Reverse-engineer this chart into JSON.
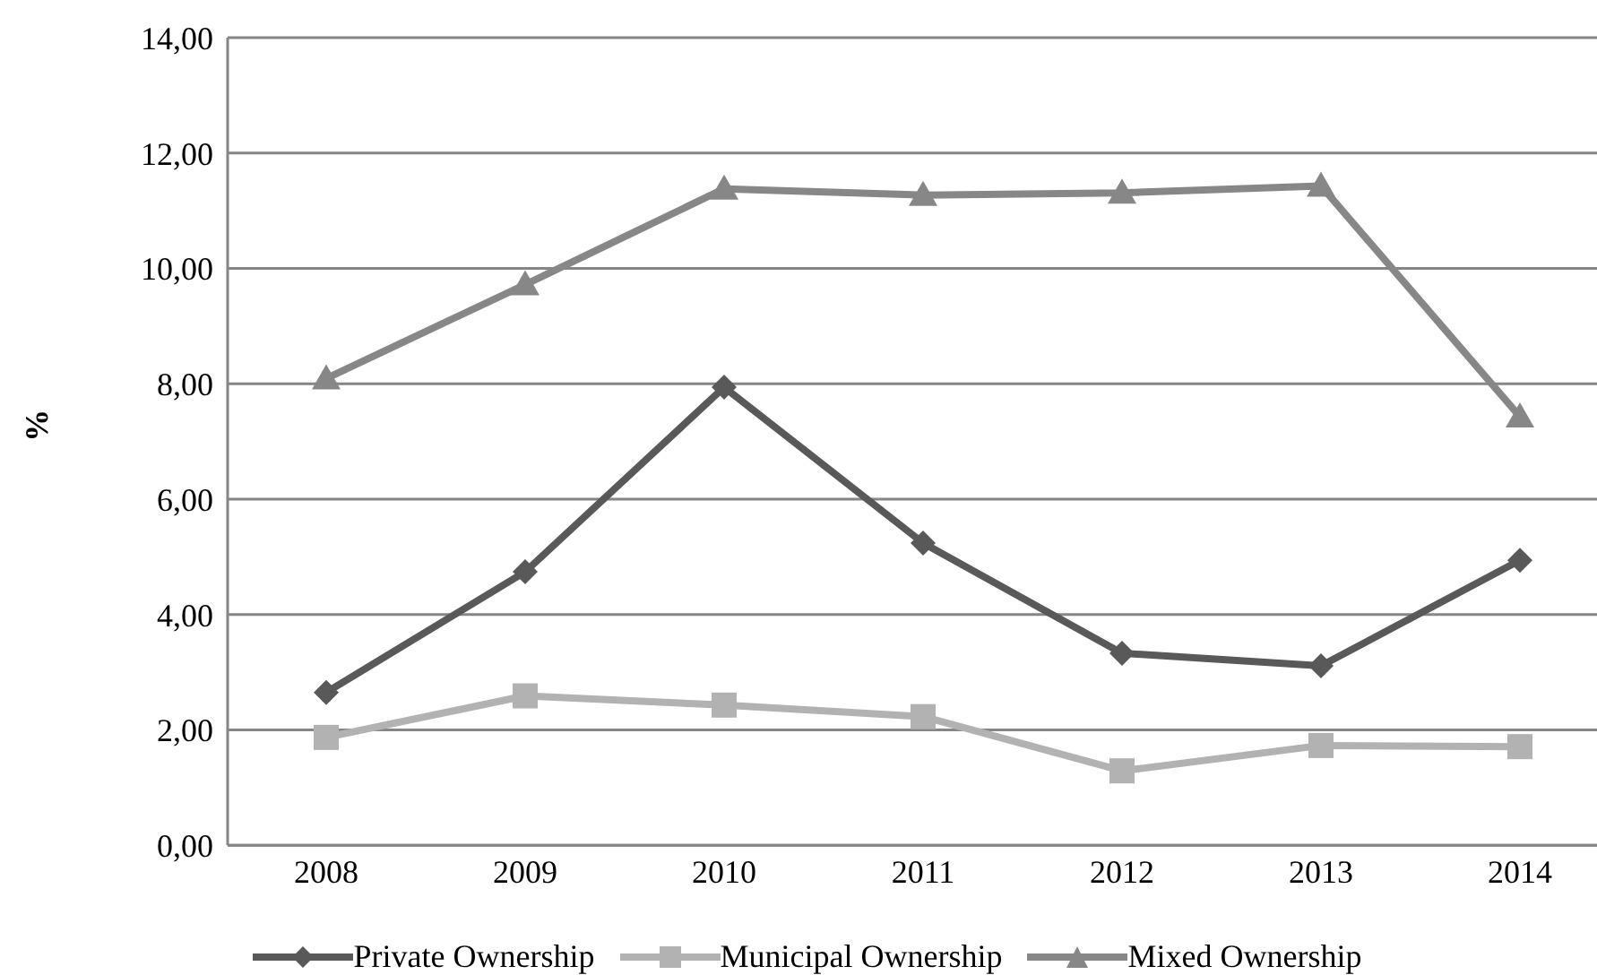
{
  "chart_data": {
    "type": "line",
    "ylabel": "%",
    "categories": [
      "2008",
      "2009",
      "2010",
      "2011",
      "2012",
      "2013",
      "2014"
    ],
    "series": [
      {
        "name": "Private Ownership",
        "color": "#595959",
        "marker": "diamond",
        "values": [
          2.65,
          4.74,
          7.94,
          5.24,
          3.33,
          3.11,
          4.94
        ]
      },
      {
        "name": "Municipal Ownership",
        "color": "#b2b2b2",
        "marker": "square",
        "values": [
          1.87,
          2.59,
          2.43,
          2.23,
          1.29,
          1.73,
          1.71
        ]
      },
      {
        "name": "Mixed Ownership",
        "color": "#878787",
        "marker": "triangle",
        "values": [
          8.09,
          9.72,
          11.38,
          11.27,
          11.31,
          11.43,
          7.43
        ]
      }
    ],
    "ylim": [
      0,
      14
    ],
    "yticks": [
      {
        "value": 0,
        "label": "0,00"
      },
      {
        "value": 2,
        "label": "2,00"
      },
      {
        "value": 4,
        "label": "4,00"
      },
      {
        "value": 6,
        "label": "6,00"
      },
      {
        "value": 8,
        "label": "8,00"
      },
      {
        "value": 10,
        "label": "10,00"
      },
      {
        "value": 12,
        "label": "12,00"
      },
      {
        "value": 14,
        "label": "14,00"
      }
    ],
    "grid": "y",
    "legend": "bottom"
  }
}
